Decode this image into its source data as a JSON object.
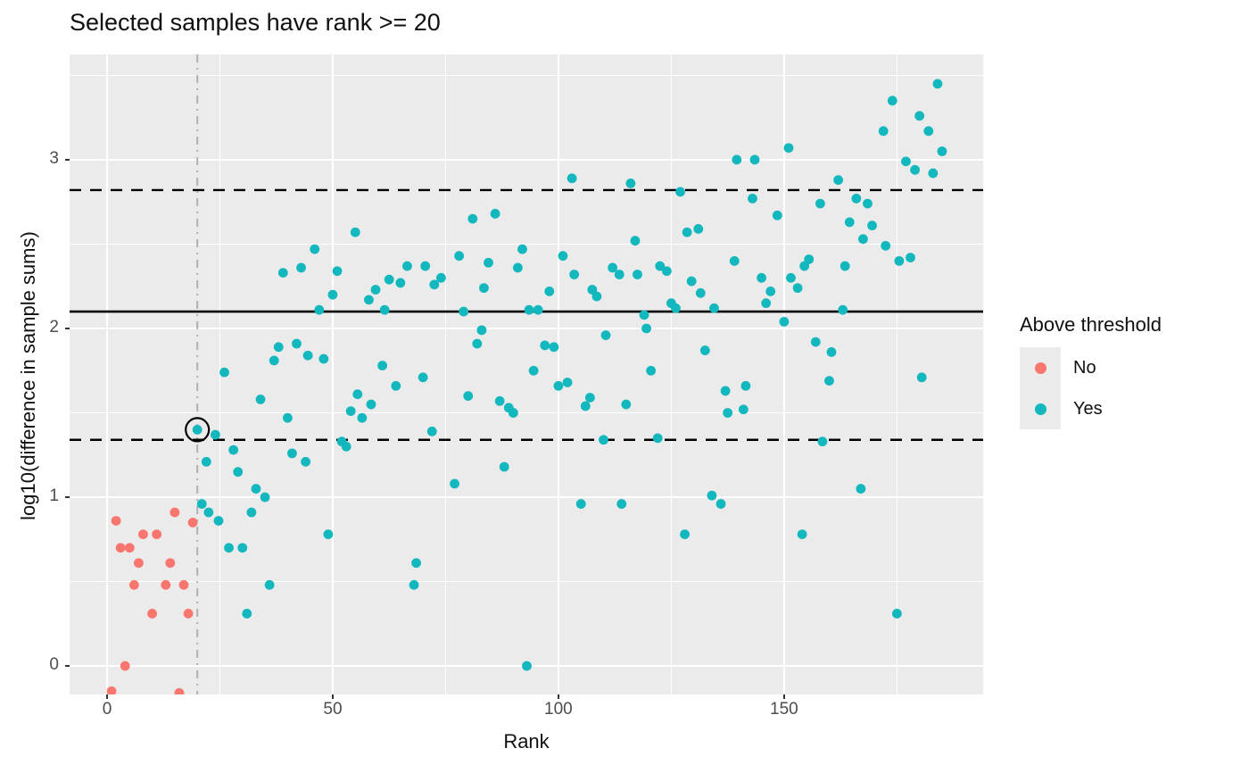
{
  "chart_data": {
    "type": "scatter",
    "title": "Selected samples have rank >= 20",
    "xlabel": "Rank",
    "ylabel": "log10(difference in sample sums)",
    "xlim": [
      -8.3,
      194.1
    ],
    "ylim": [
      -0.169,
      3.624
    ],
    "x_ticks": [
      0,
      50,
      100,
      150
    ],
    "x_minor_ticks": [
      25,
      75,
      125,
      175
    ],
    "y_ticks": [
      0,
      1,
      2,
      3
    ],
    "y_minor_ticks": [
      0.5,
      1.5,
      2.5,
      3.5
    ],
    "grid": true,
    "panel_background": "#EBEBEB",
    "gridline_color": "#FFFFFF",
    "tick_text_color": "#4D4D4D",
    "hlines": [
      {
        "y": 2.82,
        "style": "dashed",
        "color": "#000000"
      },
      {
        "y": 2.1,
        "style": "solid",
        "color": "#000000"
      },
      {
        "y": 1.34,
        "style": "dashed",
        "color": "#000000"
      }
    ],
    "vlines": [
      {
        "x": 20,
        "style": "dashdot",
        "color": "#B0B0B0"
      }
    ],
    "annotation_circle": {
      "x": 20,
      "y": 1.4,
      "radius_px": 13,
      "color": "#000000"
    },
    "legend": {
      "title": "Above threshold",
      "position": "right",
      "items": [
        {
          "label": "No",
          "color": "#F8766D"
        },
        {
          "label": "Yes",
          "color": "#12B8BD"
        }
      ]
    },
    "series": [
      {
        "name": "No",
        "color": "#F8766D",
        "points": [
          [
            1,
            -0.15
          ],
          [
            16,
            -0.16
          ],
          [
            4,
            0.0
          ],
          [
            10,
            0.31
          ],
          [
            18,
            0.31
          ],
          [
            6,
            0.48
          ],
          [
            13,
            0.48
          ],
          [
            17,
            0.48
          ],
          [
            7,
            0.61
          ],
          [
            14,
            0.61
          ],
          [
            3,
            0.7
          ],
          [
            5,
            0.7
          ],
          [
            8,
            0.78
          ],
          [
            11,
            0.78
          ],
          [
            2,
            0.86
          ],
          [
            15,
            0.91
          ],
          [
            19,
            0.85
          ]
        ]
      },
      {
        "name": "Yes",
        "color": "#12B8BD",
        "points": [
          [
            20,
            1.4
          ],
          [
            21,
            0.96
          ],
          [
            22,
            1.21
          ],
          [
            22.5,
            0.91
          ],
          [
            24,
            1.37
          ],
          [
            24.7,
            0.86
          ],
          [
            26,
            1.74
          ],
          [
            27,
            0.7
          ],
          [
            28,
            1.28
          ],
          [
            29,
            1.15
          ],
          [
            30,
            0.7
          ],
          [
            31,
            0.31
          ],
          [
            32,
            0.91
          ],
          [
            33,
            1.05
          ],
          [
            34,
            1.58
          ],
          [
            35,
            1.0
          ],
          [
            36,
            0.48
          ],
          [
            37,
            1.81
          ],
          [
            38,
            1.89
          ],
          [
            39,
            2.33
          ],
          [
            40,
            1.47
          ],
          [
            41,
            1.26
          ],
          [
            42,
            1.91
          ],
          [
            43,
            2.36
          ],
          [
            44,
            1.21
          ],
          [
            44.5,
            1.84
          ],
          [
            46,
            2.47
          ],
          [
            47,
            2.11
          ],
          [
            48,
            1.82
          ],
          [
            49,
            0.78
          ],
          [
            50,
            2.2
          ],
          [
            51,
            2.34
          ],
          [
            52,
            1.33
          ],
          [
            53,
            1.3
          ],
          [
            54,
            1.51
          ],
          [
            55,
            2.57
          ],
          [
            55.5,
            1.61
          ],
          [
            56.5,
            1.47
          ],
          [
            58,
            2.17
          ],
          [
            58.5,
            1.55
          ],
          [
            59.5,
            2.23
          ],
          [
            61,
            1.78
          ],
          [
            61.5,
            2.11
          ],
          [
            62.5,
            2.29
          ],
          [
            64,
            1.66
          ],
          [
            65,
            2.27
          ],
          [
            66.5,
            2.37
          ],
          [
            68,
            0.48
          ],
          [
            68.5,
            0.61
          ],
          [
            70,
            1.71
          ],
          [
            70.5,
            2.37
          ],
          [
            72,
            1.39
          ],
          [
            72.5,
            2.26
          ],
          [
            74,
            2.3
          ],
          [
            77,
            1.08
          ],
          [
            78,
            2.43
          ],
          [
            79,
            2.1
          ],
          [
            80,
            1.6
          ],
          [
            81,
            2.65
          ],
          [
            82,
            1.91
          ],
          [
            83,
            1.99
          ],
          [
            83.5,
            2.24
          ],
          [
            84.5,
            2.39
          ],
          [
            86,
            2.68
          ],
          [
            87,
            1.57
          ],
          [
            88,
            1.18
          ],
          [
            89,
            1.53
          ],
          [
            90,
            1.5
          ],
          [
            91,
            2.36
          ],
          [
            92,
            2.47
          ],
          [
            93,
            0.0
          ],
          [
            93.5,
            2.11
          ],
          [
            94.5,
            1.75
          ],
          [
            95.5,
            2.11
          ],
          [
            97,
            1.9
          ],
          [
            98,
            2.22
          ],
          [
            99,
            1.89
          ],
          [
            100,
            1.66
          ],
          [
            101,
            2.43
          ],
          [
            102,
            1.68
          ],
          [
            103,
            2.89
          ],
          [
            103.5,
            2.32
          ],
          [
            105,
            0.96
          ],
          [
            106,
            1.54
          ],
          [
            107,
            1.59
          ],
          [
            107.5,
            2.23
          ],
          [
            108.5,
            2.19
          ],
          [
            110,
            1.34
          ],
          [
            110.5,
            1.96
          ],
          [
            112,
            2.36
          ],
          [
            113.5,
            2.32
          ],
          [
            114,
            0.96
          ],
          [
            115,
            1.55
          ],
          [
            116,
            2.86
          ],
          [
            117,
            2.52
          ],
          [
            117.5,
            2.32
          ],
          [
            119,
            2.08
          ],
          [
            119.5,
            2.0
          ],
          [
            120.5,
            1.75
          ],
          [
            122,
            1.35
          ],
          [
            122.5,
            2.37
          ],
          [
            124,
            2.34
          ],
          [
            125,
            2.15
          ],
          [
            126,
            2.12
          ],
          [
            127,
            2.81
          ],
          [
            128,
            0.78
          ],
          [
            128.5,
            2.57
          ],
          [
            129.5,
            2.28
          ],
          [
            131,
            2.59
          ],
          [
            131.5,
            2.21
          ],
          [
            132.5,
            1.87
          ],
          [
            134,
            1.01
          ],
          [
            134.5,
            2.12
          ],
          [
            136,
            0.96
          ],
          [
            137,
            1.63
          ],
          [
            137.5,
            1.5
          ],
          [
            139,
            2.4
          ],
          [
            139.5,
            3.0
          ],
          [
            141,
            1.52
          ],
          [
            141.5,
            1.66
          ],
          [
            143,
            2.77
          ],
          [
            143.5,
            3.0
          ],
          [
            145,
            2.3
          ],
          [
            146,
            2.15
          ],
          [
            147,
            2.22
          ],
          [
            148.5,
            2.67
          ],
          [
            150,
            2.04
          ],
          [
            151,
            3.07
          ],
          [
            151.5,
            2.3
          ],
          [
            153,
            2.24
          ],
          [
            154,
            0.78
          ],
          [
            154.5,
            2.37
          ],
          [
            155.5,
            2.41
          ],
          [
            157,
            1.92
          ],
          [
            158,
            2.74
          ],
          [
            158.5,
            1.33
          ],
          [
            160,
            1.69
          ],
          [
            160.5,
            1.86
          ],
          [
            162,
            2.88
          ],
          [
            163,
            2.11
          ],
          [
            163.5,
            2.37
          ],
          [
            164.5,
            2.63
          ],
          [
            166,
            2.77
          ],
          [
            167,
            1.05
          ],
          [
            167.5,
            2.53
          ],
          [
            168.5,
            2.74
          ],
          [
            169.5,
            2.61
          ],
          [
            172,
            3.17
          ],
          [
            172.5,
            2.49
          ],
          [
            174,
            3.35
          ],
          [
            175,
            0.31
          ],
          [
            175.5,
            2.4
          ],
          [
            177,
            2.99
          ],
          [
            178,
            2.42
          ],
          [
            179,
            2.94
          ],
          [
            180,
            3.26
          ],
          [
            180.5,
            1.71
          ],
          [
            182,
            3.17
          ],
          [
            183,
            2.92
          ],
          [
            184,
            3.45
          ],
          [
            185,
            3.05
          ]
        ]
      }
    ]
  }
}
